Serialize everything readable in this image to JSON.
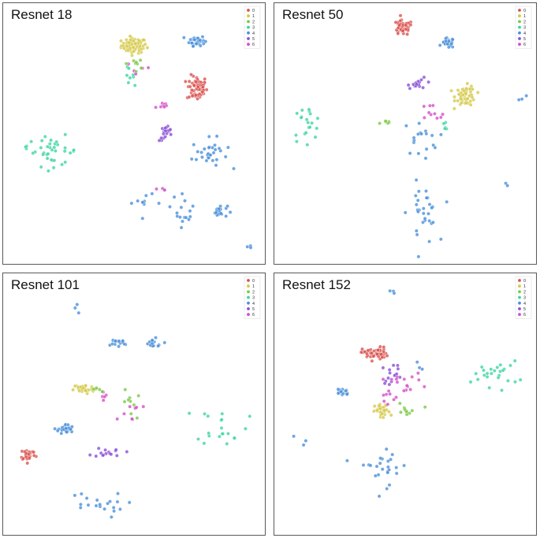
{
  "chart_data": [
    {
      "type": "scatter",
      "title": "Resnet 18",
      "legend": {
        "placement": "top-right",
        "entries": [
          "0",
          "1",
          "2",
          "3",
          "4",
          "5",
          "6"
        ]
      },
      "xlim": [
        0,
        100
      ],
      "ylim": [
        0,
        100
      ],
      "grid": false,
      "axes_visible": false,
      "colors": [
        "#d9534f",
        "#d4c94a",
        "#7ac943",
        "#3dd6a0",
        "#4a90d9",
        "#8a4fd6",
        "#d64fc8"
      ],
      "clusters": [
        {
          "label": "1",
          "cx": 50,
          "cy": 85,
          "n": 80,
          "sx": 2.5,
          "sy": 1.5
        },
        {
          "label": "0",
          "cx": 75,
          "cy": 68,
          "n": 70,
          "sx": 2.0,
          "sy": 2.5
        },
        {
          "label": "4",
          "cx": 75,
          "cy": 87,
          "n": 40,
          "sx": 1.5,
          "sy": 1.0
        },
        {
          "label": "4",
          "cx": 80,
          "cy": 42,
          "n": 30,
          "sx": 3.5,
          "sy": 3.0
        },
        {
          "label": "4",
          "cx": 84,
          "cy": 19,
          "n": 20,
          "sx": 1.5,
          "sy": 1.2
        },
        {
          "label": "4",
          "cx": 70,
          "cy": 20,
          "n": 15,
          "sx": 2.0,
          "sy": 3.5
        },
        {
          "label": "4",
          "cx": 58,
          "cy": 23,
          "n": 8,
          "sx": 4.5,
          "sy": 2.0
        },
        {
          "label": "4",
          "cx": 53,
          "cy": 22,
          "n": 4,
          "sx": 1.0,
          "sy": 0.8
        },
        {
          "label": "4",
          "cx": 96,
          "cy": 5,
          "n": 3,
          "sx": 1.0,
          "sy": 1.0
        },
        {
          "label": "3",
          "cx": 18,
          "cy": 43,
          "n": 35,
          "sx": 5.0,
          "sy": 3.0
        },
        {
          "label": "3",
          "cx": 7,
          "cy": 45,
          "n": 3,
          "sx": 1.0,
          "sy": 0.6
        },
        {
          "label": "3",
          "cx": 47,
          "cy": 73,
          "n": 8,
          "sx": 1.5,
          "sy": 1.5
        },
        {
          "label": "5",
          "cx": 63,
          "cy": 50,
          "n": 20,
          "sx": 1.5,
          "sy": 1.5
        },
        {
          "label": "6",
          "cx": 61,
          "cy": 61,
          "n": 8,
          "sx": 1.5,
          "sy": 1.0
        },
        {
          "label": "6",
          "cx": 52,
          "cy": 76,
          "n": 6,
          "sx": 3.0,
          "sy": 2.0
        },
        {
          "label": "2",
          "cx": 51,
          "cy": 78,
          "n": 8,
          "sx": 2.0,
          "sy": 3.0
        },
        {
          "label": "6",
          "cx": 61,
          "cy": 28,
          "n": 3,
          "sx": 1.0,
          "sy": 1.0
        }
      ]
    },
    {
      "type": "scatter",
      "title": "Resnet 50",
      "legend": {
        "placement": "top-right",
        "entries": [
          "0",
          "1",
          "2",
          "3",
          "4",
          "5",
          "6"
        ]
      },
      "xlim": [
        0,
        100
      ],
      "ylim": [
        0,
        100
      ],
      "grid": false,
      "axes_visible": false,
      "colors": [
        "#d9534f",
        "#d4c94a",
        "#7ac943",
        "#3dd6a0",
        "#4a90d9",
        "#8a4fd6",
        "#d64fc8"
      ],
      "clusters": [
        {
          "label": "0",
          "cx": 49,
          "cy": 92,
          "n": 45,
          "sx": 2.0,
          "sy": 1.5
        },
        {
          "label": "4",
          "cx": 67,
          "cy": 86,
          "n": 25,
          "sx": 1.2,
          "sy": 1.0
        },
        {
          "label": "1",
          "cx": 74,
          "cy": 65,
          "n": 55,
          "sx": 2.0,
          "sy": 2.0
        },
        {
          "label": "5",
          "cx": 56,
          "cy": 70,
          "n": 15,
          "sx": 2.5,
          "sy": 1.0
        },
        {
          "label": "3",
          "cx": 11,
          "cy": 54,
          "n": 20,
          "sx": 3.0,
          "sy": 3.5
        },
        {
          "label": "4",
          "cx": 57,
          "cy": 18,
          "n": 30,
          "sx": 3.0,
          "sy": 6.0
        },
        {
          "label": "4",
          "cx": 56,
          "cy": 48,
          "n": 18,
          "sx": 3.5,
          "sy": 3.5
        },
        {
          "label": "4",
          "cx": 96,
          "cy": 64,
          "n": 3,
          "sx": 1.0,
          "sy": 0.5
        },
        {
          "label": "4",
          "cx": 90,
          "cy": 30,
          "n": 2,
          "sx": 1.0,
          "sy": 1.0
        },
        {
          "label": "3",
          "cx": 66,
          "cy": 53,
          "n": 5,
          "sx": 0.7,
          "sy": 1.0
        },
        {
          "label": "6",
          "cx": 59,
          "cy": 57,
          "n": 10,
          "sx": 4.0,
          "sy": 2.5
        },
        {
          "label": "2",
          "cx": 43,
          "cy": 54,
          "n": 6,
          "sx": 1.5,
          "sy": 0.7
        }
      ]
    },
    {
      "type": "scatter",
      "title": "Resnet 101",
      "legend": {
        "placement": "top-right",
        "entries": [
          "0",
          "1",
          "2",
          "3",
          "4",
          "5",
          "6"
        ]
      },
      "xlim": [
        0,
        100
      ],
      "ylim": [
        0,
        100
      ],
      "grid": false,
      "axes_visible": false,
      "colors": [
        "#d9534f",
        "#d4c94a",
        "#7ac943",
        "#3dd6a0",
        "#4a90d9",
        "#8a4fd6",
        "#d64fc8"
      ],
      "clusters": [
        {
          "label": "1",
          "cx": 30,
          "cy": 56,
          "n": 40,
          "sx": 2.0,
          "sy": 1.0
        },
        {
          "label": "0",
          "cx": 8,
          "cy": 30,
          "n": 30,
          "sx": 1.5,
          "sy": 1.2
        },
        {
          "label": "4",
          "cx": 23,
          "cy": 40,
          "n": 30,
          "sx": 1.5,
          "sy": 1.0
        },
        {
          "label": "5",
          "cx": 40,
          "cy": 31,
          "n": 15,
          "sx": 3.0,
          "sy": 1.0
        },
        {
          "label": "3",
          "cx": 85,
          "cy": 42,
          "n": 20,
          "sx": 5.0,
          "sy": 4.0
        },
        {
          "label": "4",
          "cx": 43,
          "cy": 74,
          "n": 15,
          "sx": 2.5,
          "sy": 1.0
        },
        {
          "label": "4",
          "cx": 57,
          "cy": 74,
          "n": 15,
          "sx": 2.5,
          "sy": 1.0
        },
        {
          "label": "4",
          "cx": 34,
          "cy": 10,
          "n": 20,
          "sx": 6.0,
          "sy": 2.5
        },
        {
          "label": "4",
          "cx": 27,
          "cy": 88,
          "n": 3,
          "sx": 1.0,
          "sy": 1.0
        },
        {
          "label": "2",
          "cx": 49,
          "cy": 50,
          "n": 10,
          "sx": 1.5,
          "sy": 3.0
        },
        {
          "label": "6",
          "cx": 47,
          "cy": 47,
          "n": 8,
          "sx": 3.0,
          "sy": 2.0
        },
        {
          "label": "6",
          "cx": 38,
          "cy": 53,
          "n": 5,
          "sx": 1.0,
          "sy": 1.0
        },
        {
          "label": "2",
          "cx": 36,
          "cy": 56,
          "n": 5,
          "sx": 1.0,
          "sy": 0.8
        }
      ]
    },
    {
      "type": "scatter",
      "title": "Resnet 152",
      "legend": {
        "placement": "top-right",
        "entries": [
          "0",
          "1",
          "2",
          "3",
          "4",
          "5",
          "6"
        ]
      },
      "xlim": [
        0,
        100
      ],
      "ylim": [
        0,
        100
      ],
      "grid": false,
      "axes_visible": false,
      "colors": [
        "#d9534f",
        "#d4c94a",
        "#7ac943",
        "#3dd6a0",
        "#4a90d9",
        "#8a4fd6",
        "#d64fc8"
      ],
      "clusters": [
        {
          "label": "0",
          "cx": 38,
          "cy": 70,
          "n": 50,
          "sx": 2.5,
          "sy": 1.3
        },
        {
          "label": "1",
          "cx": 41,
          "cy": 47,
          "n": 35,
          "sx": 1.5,
          "sy": 1.5
        },
        {
          "label": "4",
          "cx": 25,
          "cy": 55,
          "n": 20,
          "sx": 1.5,
          "sy": 0.8
        },
        {
          "label": "3",
          "cx": 86,
          "cy": 62,
          "n": 25,
          "sx": 4.5,
          "sy": 2.5
        },
        {
          "label": "5",
          "cx": 45,
          "cy": 62,
          "n": 15,
          "sx": 2.0,
          "sy": 2.0
        },
        {
          "label": "6",
          "cx": 49,
          "cy": 59,
          "n": 15,
          "sx": 4.0,
          "sy": 2.0
        },
        {
          "label": "2",
          "cx": 50,
          "cy": 47,
          "n": 10,
          "sx": 3.0,
          "sy": 1.5
        },
        {
          "label": "4",
          "cx": 42,
          "cy": 26,
          "n": 25,
          "sx": 5.0,
          "sy": 4.0
        },
        {
          "label": "4",
          "cx": 45,
          "cy": 94,
          "n": 3,
          "sx": 1.5,
          "sy": 0.5
        },
        {
          "label": "4",
          "cx": 9,
          "cy": 35,
          "n": 3,
          "sx": 2.0,
          "sy": 1.0
        },
        {
          "label": "6",
          "cx": 43,
          "cy": 52,
          "n": 8,
          "sx": 2.0,
          "sy": 2.0
        },
        {
          "label": "4",
          "cx": 55,
          "cy": 65,
          "n": 3,
          "sx": 1.0,
          "sy": 1.0
        }
      ]
    }
  ]
}
